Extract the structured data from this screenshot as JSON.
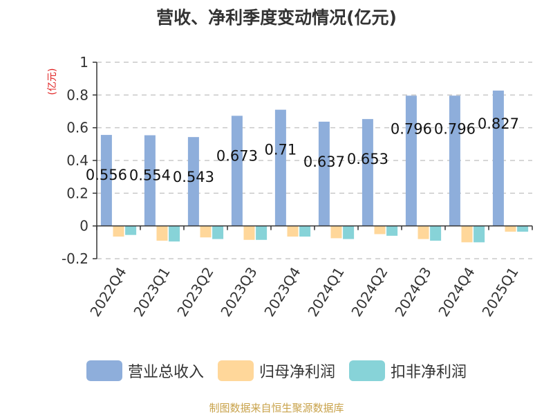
{
  "chart_data": {
    "type": "bar",
    "title": "营收、净利季度变动情况(亿元)",
    "ylabel": "(亿元)",
    "ylim": [
      -0.2,
      1
    ],
    "yticks": [
      "-0.2",
      "0",
      "0.2",
      "0.4",
      "0.6",
      "0.8",
      "1"
    ],
    "grid": true,
    "legend_position": "bottom",
    "categories": [
      "2022Q4",
      "2023Q1",
      "2023Q2",
      "2023Q3",
      "2023Q4",
      "2024Q1",
      "2024Q2",
      "2024Q3",
      "2024Q4",
      "2025Q1"
    ],
    "series": [
      {
        "name": "营业总收入",
        "color": "#8eaedb",
        "values": [
          0.556,
          0.554,
          0.543,
          0.673,
          0.71,
          0.637,
          0.653,
          0.796,
          0.796,
          0.827
        ],
        "labels": [
          "0.556",
          "0.554",
          "0.543",
          "0.673",
          "0.71",
          "0.637",
          "0.653",
          "0.796",
          "0.796",
          "0.827"
        ]
      },
      {
        "name": "归母净利润",
        "color": "#ffd79a",
        "values": [
          -0.065,
          -0.09,
          -0.07,
          -0.085,
          -0.065,
          -0.075,
          -0.05,
          -0.08,
          -0.1,
          -0.035
        ]
      },
      {
        "name": "扣非净利润",
        "color": "#87d3d8",
        "values": [
          -0.055,
          -0.095,
          -0.08,
          -0.085,
          -0.065,
          -0.08,
          -0.06,
          -0.09,
          -0.1,
          -0.035
        ]
      }
    ]
  },
  "source": "制图数据来自恒生聚源数据库"
}
